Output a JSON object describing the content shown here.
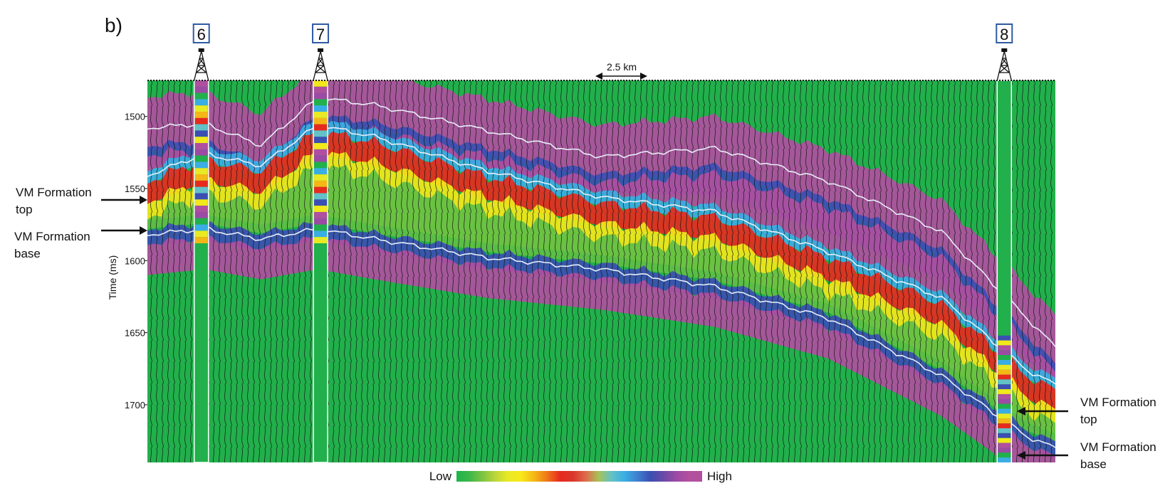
{
  "figure": {
    "panel_label": "b)",
    "y_axis": {
      "label": "Time (ms)",
      "range": [
        1475,
        1740
      ],
      "ticks": [
        1500,
        1550,
        1600,
        1650,
        1700
      ],
      "tick_labels": [
        "1500",
        "1550",
        "1600",
        "1650",
        "1700"
      ]
    },
    "scale_bar": {
      "label": "2.5 km"
    },
    "colorbar": {
      "low_label": "Low",
      "high_label": "High",
      "colors": [
        "#1fb34a",
        "#3cb84a",
        "#7cc442",
        "#bcd63a",
        "#e9ea24",
        "#f9e81a",
        "#f5b716",
        "#ef7818",
        "#e62b1e",
        "#d9362a",
        "#e06a4a",
        "#a6c257",
        "#63c1c8",
        "#3aaee3",
        "#3f7fd0",
        "#3b4fb3",
        "#6a4aa6",
        "#9c4aa4",
        "#b3509e",
        "#b04fa0"
      ]
    },
    "wells": [
      {
        "id": "6",
        "x_km": 1.9
      },
      {
        "id": "7",
        "x_km": 6.1
      },
      {
        "id": "8",
        "x_km": 30.2
      }
    ],
    "annotations": [
      {
        "id": "left-top",
        "line1": "VM Formation",
        "line2": "top"
      },
      {
        "id": "left-base",
        "line1": "VM Formation",
        "line2": "base"
      },
      {
        "id": "right-top",
        "line1": "VM Formation",
        "line2": "top"
      },
      {
        "id": "right-base",
        "line1": "VM Formation",
        "line2": "base"
      }
    ],
    "palette": {
      "background": "#21b04b",
      "wiggle": "#111111",
      "formation_top": [
        "#b04fa0",
        "#3b4fb3",
        "#3aaee3",
        "#e62b1e",
        "#f3e81a"
      ],
      "formation_body": [
        "#e62b1e",
        "#f3e81a",
        "#21b04b"
      ],
      "horizon": "#e8eef8"
    },
    "horizons_ms": {
      "x_km": [
        0,
        2,
        4,
        6,
        8,
        12,
        16,
        20,
        24,
        28,
        31,
        32
      ],
      "upper_reflector": [
        1508,
        1505,
        1520,
        1487,
        1492,
        1510,
        1528,
        1522,
        1545,
        1580,
        1640,
        1660
      ],
      "vm_top": [
        1555,
        1540,
        1548,
        1520,
        1528,
        1552,
        1570,
        1580,
        1608,
        1640,
        1690,
        1700
      ],
      "vm_base": [
        1582,
        1578,
        1585,
        1578,
        1585,
        1598,
        1606,
        1618,
        1640,
        1680,
        1722,
        1730
      ]
    }
  }
}
